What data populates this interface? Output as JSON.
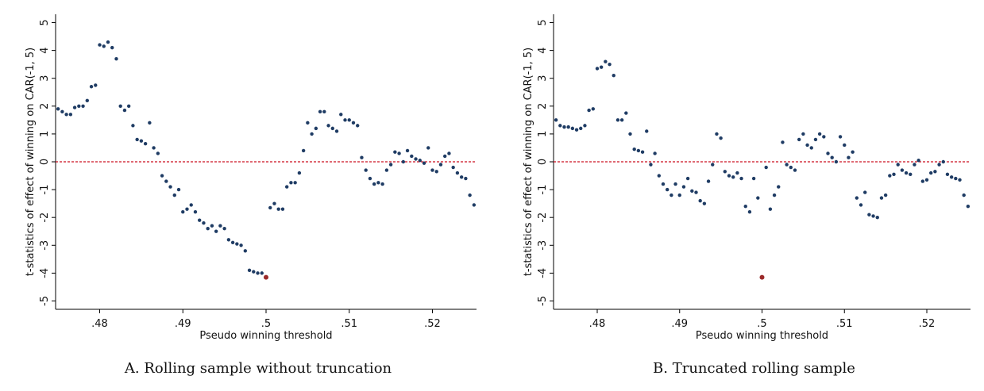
{
  "chart_data": [
    {
      "type": "scatter",
      "caption": "A. Rolling sample without truncation",
      "xlabel": "Pseudo winning threshold",
      "ylabel": "t-statistics of effect of winning on CAR(-1, 5)",
      "xlim": [
        0.4747,
        0.5253
      ],
      "ylim": [
        -5.3,
        5.3
      ],
      "xticks": [
        {
          "value": 0.48,
          "label": ".48"
        },
        {
          "value": 0.49,
          "label": ".49"
        },
        {
          "value": 0.5,
          "label": ".5"
        },
        {
          "value": 0.51,
          "label": ".51"
        },
        {
          "value": 0.52,
          "label": ".52"
        }
      ],
      "yticks": [
        5,
        4,
        3,
        2,
        1,
        0,
        -1,
        -2,
        -3,
        -4,
        -5
      ],
      "refline": 0,
      "refline_color": "#cc1122",
      "series": [
        {
          "color": "#1f3c64",
          "x": [
            0.475,
            0.4755,
            0.476,
            0.4765,
            0.477,
            0.4775,
            0.478,
            0.4785,
            0.479,
            0.4795,
            0.48,
            0.4805,
            0.481,
            0.4815,
            0.482,
            0.4825,
            0.483,
            0.4835,
            0.484,
            0.4845,
            0.485,
            0.4855,
            0.486,
            0.4865,
            0.487,
            0.4875,
            0.488,
            0.4885,
            0.489,
            0.4895,
            0.49,
            0.4905,
            0.491,
            0.4915,
            0.492,
            0.4925,
            0.493,
            0.4935,
            0.494,
            0.4945,
            0.495,
            0.4955,
            0.496,
            0.4965,
            0.497,
            0.4975,
            0.498,
            0.4985,
            0.499,
            0.4995,
            0.5005,
            0.501,
            0.5015,
            0.502,
            0.5025,
            0.503,
            0.5035,
            0.504,
            0.5045,
            0.505,
            0.5055,
            0.506,
            0.5065,
            0.507,
            0.5075,
            0.508,
            0.5085,
            0.509,
            0.5095,
            0.51,
            0.5105,
            0.511,
            0.5115,
            0.512,
            0.5125,
            0.513,
            0.5135,
            0.514,
            0.5145,
            0.515,
            0.5155,
            0.516,
            0.5165,
            0.517,
            0.5175,
            0.518,
            0.5185,
            0.519,
            0.5195,
            0.52,
            0.5205,
            0.521,
            0.5215,
            0.522,
            0.5225,
            0.523,
            0.5235,
            0.524,
            0.5245,
            0.525
          ],
          "values": [
            1.9,
            1.8,
            1.7,
            1.7,
            1.95,
            2.0,
            2.0,
            2.2,
            2.7,
            2.75,
            4.2,
            4.15,
            4.3,
            4.1,
            3.7,
            2.0,
            1.85,
            2.0,
            1.3,
            0.8,
            0.75,
            0.65,
            1.4,
            0.5,
            0.3,
            -0.5,
            -0.7,
            -0.9,
            -1.2,
            -1.0,
            -1.8,
            -1.7,
            -1.55,
            -1.8,
            -2.1,
            -2.2,
            -2.4,
            -2.3,
            -2.5,
            -2.3,
            -2.4,
            -2.8,
            -2.9,
            -2.95,
            -3.0,
            -3.2,
            -3.9,
            -3.95,
            -4.0,
            -4.0,
            -1.65,
            -1.5,
            -1.7,
            -1.7,
            -0.9,
            -0.75,
            -0.75,
            -0.4,
            0.4,
            1.4,
            1.0,
            1.2,
            1.8,
            1.8,
            1.3,
            1.2,
            1.1,
            1.7,
            1.5,
            1.5,
            1.4,
            1.3,
            0.15,
            -0.3,
            -0.6,
            -0.8,
            -0.75,
            -0.8,
            -0.3,
            -0.1,
            0.35,
            0.3,
            0.0,
            0.4,
            0.2,
            0.1,
            0.05,
            -0.05,
            0.5,
            -0.3,
            -0.35,
            -0.1,
            0.2,
            0.3,
            -0.2,
            -0.4,
            -0.55,
            -0.6,
            -1.2,
            -1.55
          ]
        },
        {
          "color": "#9b2a2a",
          "x": [
            0.5
          ],
          "values": [
            -4.15
          ]
        }
      ]
    },
    {
      "type": "scatter",
      "caption": "B. Truncated rolling sample",
      "xlabel": "Pseudo winning threshold",
      "ylabel": "t-statistics of effect of winning on CAR(-1, 5)",
      "xlim": [
        0.4747,
        0.5253
      ],
      "ylim": [
        -5.3,
        5.3
      ],
      "xticks": [
        {
          "value": 0.48,
          "label": ".48"
        },
        {
          "value": 0.49,
          "label": ".49"
        },
        {
          "value": 0.5,
          "label": ".5"
        },
        {
          "value": 0.51,
          "label": ".51"
        },
        {
          "value": 0.52,
          "label": ".52"
        }
      ],
      "yticks": [
        5,
        4,
        3,
        2,
        1,
        0,
        -1,
        -2,
        -3,
        -4,
        -5
      ],
      "refline": 0,
      "refline_color": "#cc1122",
      "series": [
        {
          "color": "#1f3c64",
          "x": [
            0.475,
            0.4755,
            0.476,
            0.4765,
            0.477,
            0.4775,
            0.478,
            0.4785,
            0.479,
            0.4795,
            0.48,
            0.4805,
            0.481,
            0.4815,
            0.482,
            0.4825,
            0.483,
            0.4835,
            0.484,
            0.4845,
            0.485,
            0.4855,
            0.486,
            0.4865,
            0.487,
            0.4875,
            0.488,
            0.4885,
            0.489,
            0.4895,
            0.49,
            0.4905,
            0.491,
            0.4915,
            0.492,
            0.4925,
            0.493,
            0.4935,
            0.494,
            0.4945,
            0.495,
            0.4955,
            0.496,
            0.4965,
            0.497,
            0.4975,
            0.498,
            0.4985,
            0.499,
            0.4995,
            0.5005,
            0.501,
            0.5015,
            0.502,
            0.5025,
            0.503,
            0.5035,
            0.504,
            0.5045,
            0.505,
            0.5055,
            0.506,
            0.5065,
            0.507,
            0.5075,
            0.508,
            0.5085,
            0.509,
            0.5095,
            0.51,
            0.5105,
            0.511,
            0.5115,
            0.512,
            0.5125,
            0.513,
            0.5135,
            0.514,
            0.5145,
            0.515,
            0.5155,
            0.516,
            0.5165,
            0.517,
            0.5175,
            0.518,
            0.5185,
            0.519,
            0.5195,
            0.52,
            0.5205,
            0.521,
            0.5215,
            0.522,
            0.5225,
            0.523,
            0.5235,
            0.524,
            0.5245,
            0.525
          ],
          "values": [
            1.5,
            1.3,
            1.25,
            1.25,
            1.2,
            1.15,
            1.2,
            1.3,
            1.85,
            1.9,
            3.35,
            3.4,
            3.6,
            3.5,
            3.1,
            1.5,
            1.5,
            1.75,
            1.0,
            0.45,
            0.4,
            0.35,
            1.1,
            -0.1,
            0.3,
            -0.5,
            -0.8,
            -1.0,
            -1.2,
            -0.8,
            -1.2,
            -0.9,
            -0.6,
            -1.05,
            -1.1,
            -1.4,
            -1.5,
            -0.7,
            -0.1,
            1.0,
            0.85,
            -0.35,
            -0.5,
            -0.55,
            -0.4,
            -0.6,
            -1.6,
            -1.8,
            -0.6,
            -1.3,
            -0.2,
            -1.7,
            -1.2,
            -0.9,
            0.7,
            -0.1,
            -0.2,
            -0.3,
            0.8,
            1.0,
            0.6,
            0.5,
            0.8,
            1.0,
            0.9,
            0.3,
            0.15,
            0.0,
            0.9,
            0.6,
            0.15,
            0.35,
            -1.3,
            -1.55,
            -1.1,
            -1.9,
            -1.95,
            -2.0,
            -1.3,
            -1.2,
            -0.5,
            -0.45,
            -0.1,
            -0.3,
            -0.4,
            -0.45,
            -0.1,
            0.05,
            -0.7,
            -0.65,
            -0.4,
            -0.35,
            -0.1,
            0.0,
            -0.45,
            -0.55,
            -0.6,
            -0.65,
            -1.2,
            -1.6
          ]
        },
        {
          "color": "#9b2a2a",
          "x": [
            0.5
          ],
          "values": [
            -4.15
          ]
        }
      ]
    }
  ]
}
